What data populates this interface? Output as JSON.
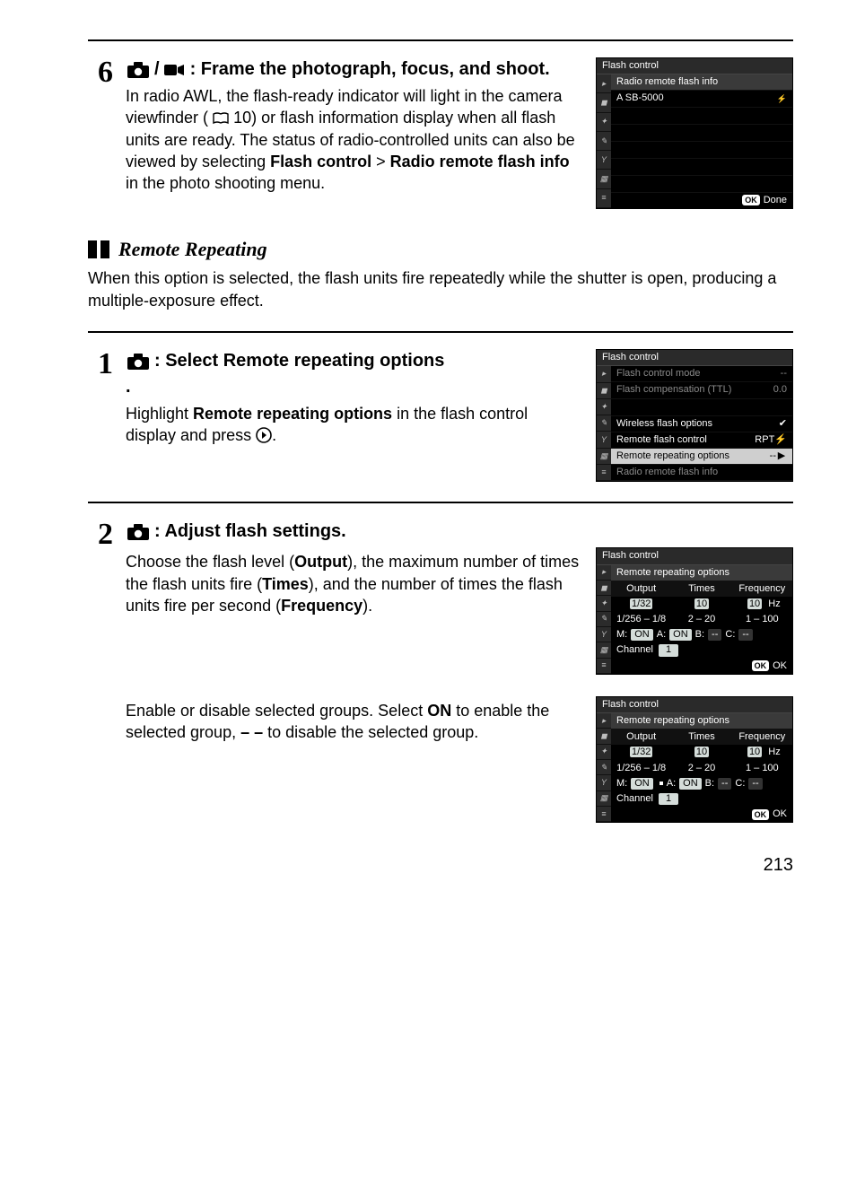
{
  "palette": {
    "page_bg": "#ffffff",
    "text": "#000000",
    "menu_bg": "#000000",
    "menu_fg": "#ffffff",
    "menu_titlebar": "#2a2a2a",
    "menu_sel_bg": "#cfcfcf",
    "menu_dim": "#8a8a8a",
    "cell_bg": "#d5ddda",
    "side_tab_bg": "#b8b8b8"
  },
  "step6": {
    "num": "6",
    "heading": ": Frame the photograph, focus, and shoot.",
    "body_a": "In radio AWL, the flash-ready indicator will light in the camera viewfinder (",
    "book_ref": " 10) or flash information display when all flash units are ready.  The status of radio-controlled units can also be viewed by selecting ",
    "bold1": "Flash control",
    "gt": " > ",
    "bold2": "Radio remote flash info",
    "body_b": " in the photo shooting menu."
  },
  "menu_a": {
    "title": "Flash control",
    "sub": "Radio remote flash info",
    "row1_l": "A SB-5000",
    "footer": "Done"
  },
  "section": {
    "title": "Remote Repeating",
    "desc": "When this option is selected, the flash units fire repeatedly while the shutter is open, producing a multiple-exposure effect."
  },
  "step1": {
    "num": "1",
    "h1": ": Select ",
    "h1b": "Remote repeating options",
    "h1c": ".",
    "body_a": "Highlight ",
    "body_b": "Remote repeating options",
    "body_c": " in the flash control display and press "
  },
  "menu_b": {
    "title": "Flash control",
    "rows": [
      {
        "l": "Flash control mode",
        "r": "--",
        "dim": true
      },
      {
        "l": "Flash compensation (TTL)",
        "r": "0.0",
        "dim": true
      },
      {
        "l": "Wireless flash options",
        "r": "✔"
      },
      {
        "l": "Remote flash control",
        "r": "RPT⚡"
      },
      {
        "l": "Remote repeating options",
        "r": "--",
        "sel": true,
        "arrow": true
      },
      {
        "l": "Radio remote flash info",
        "r": "",
        "dim": true
      }
    ]
  },
  "step2": {
    "num": "2",
    "h": ": Adjust flash settings.",
    "para1_a": "Choose the flash level (",
    "para1_b": "Output",
    "para1_c": "), the maximum number of times the flash units fire (",
    "para1_d": "Times",
    "para1_e": "), and the number of times the flash units fire per second (",
    "para1_f": "Frequency",
    "para1_g": ").",
    "para2_a": "Enable or disable selected groups. Select ",
    "para2_b": "ON",
    "para2_c": " to enable the selected group, ",
    "para2_d": "– –",
    "para2_e": " to disable the selected group."
  },
  "menu_c": {
    "title": "Flash control",
    "sub": "Remote repeating options",
    "head": [
      "Output",
      "Times",
      "Frequency"
    ],
    "vals": [
      "1/32",
      "10",
      "10"
    ],
    "hz": "Hz",
    "range": [
      "1/256 – 1/8",
      "2 – 20",
      "1 – 100"
    ],
    "groups": {
      "M": "ON",
      "A": "ON",
      "B": "--",
      "C": "--"
    },
    "channel_label": "Channel",
    "channel_val": "1",
    "ok": "OK"
  },
  "menu_d": {
    "title": "Flash control",
    "sub": "Remote repeating options",
    "head": [
      "Output",
      "Times",
      "Frequency"
    ],
    "vals": [
      "1/32",
      "10",
      "10"
    ],
    "hz": "Hz",
    "range": [
      "1/256 – 1/8",
      "2 – 20",
      "1 – 100"
    ],
    "groups": {
      "M": "ON",
      "A": "ON",
      "B": "--",
      "C": "--"
    },
    "channel_label": "Channel",
    "channel_val": "1",
    "ok": "OK"
  },
  "page_number": "213",
  "icons": {
    "camera": "camera-icon",
    "video": "video-icon",
    "book": "book-icon",
    "dpad": "dpad-right-icon",
    "flash": "flash-icon"
  }
}
